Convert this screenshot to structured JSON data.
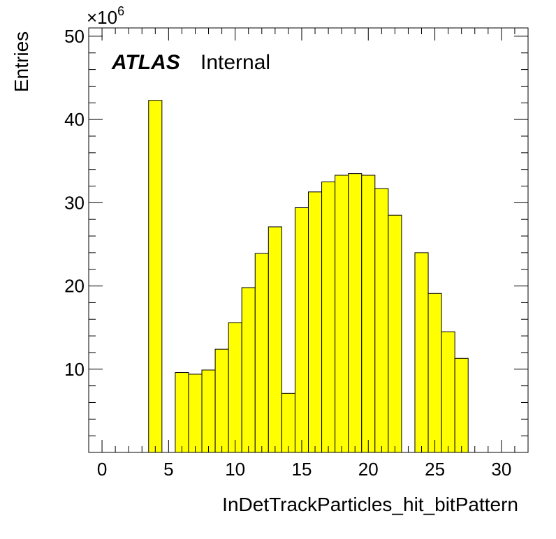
{
  "chart_data": {
    "type": "bar",
    "histogram": true,
    "x_label": "InDetTrackParticles_hit_bitPattern",
    "y_label": "Entries",
    "y_multiplier": "×10",
    "y_multiplier_exponent": "6",
    "xlim": [
      -1,
      32
    ],
    "ylim": [
      0,
      51
    ],
    "x_ticks": [
      "0",
      "5",
      "10",
      "15",
      "20",
      "25",
      "30"
    ],
    "y_ticks": [
      "10",
      "20",
      "30",
      "40",
      "50"
    ],
    "bin_width": 1,
    "bins": [
      {
        "x": 4,
        "value": 42.3
      },
      {
        "x": 6,
        "value": 9.6
      },
      {
        "x": 7,
        "value": 9.4
      },
      {
        "x": 8,
        "value": 9.9
      },
      {
        "x": 9,
        "value": 12.4
      },
      {
        "x": 10,
        "value": 15.6
      },
      {
        "x": 11,
        "value": 19.8
      },
      {
        "x": 12,
        "value": 23.9
      },
      {
        "x": 13,
        "value": 27.1
      },
      {
        "x": 14,
        "value": 7.1
      },
      {
        "x": 15,
        "value": 29.4
      },
      {
        "x": 16,
        "value": 31.3
      },
      {
        "x": 17,
        "value": 32.5
      },
      {
        "x": 18,
        "value": 33.3
      },
      {
        "x": 19,
        "value": 33.5
      },
      {
        "x": 20,
        "value": 33.3
      },
      {
        "x": 21,
        "value": 31.7
      },
      {
        "x": 22,
        "value": 28.5
      },
      {
        "x": 24,
        "value": 24.0
      },
      {
        "x": 25,
        "value": 19.1
      },
      {
        "x": 26,
        "value": 14.5
      },
      {
        "x": 27,
        "value": 11.3
      }
    ],
    "fill_color": "#ffff00",
    "line_color": "#000000",
    "legend": "none",
    "grid": false
  },
  "labels": {
    "atlas": "ATLAS",
    "internal": "Internal"
  }
}
